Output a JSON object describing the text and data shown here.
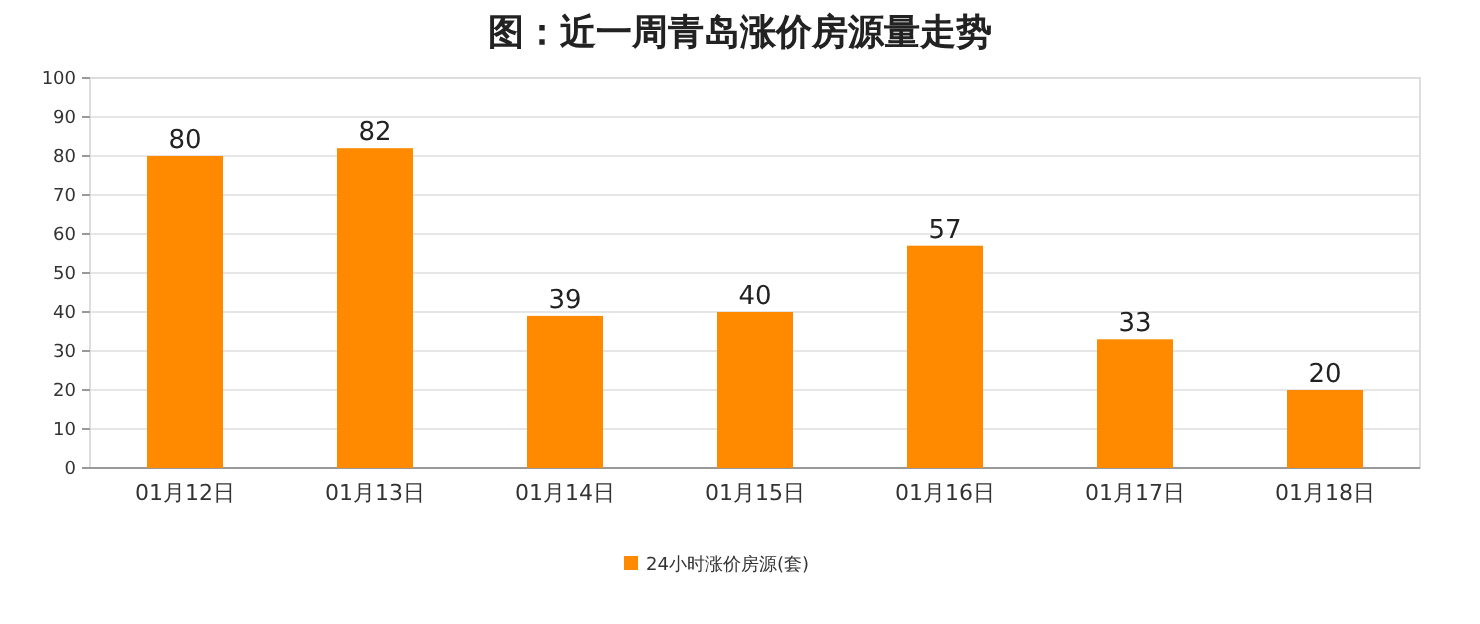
{
  "chart_data": {
    "type": "bar",
    "title": "图：近一周青岛涨价房源量走势",
    "categories": [
      "01月12日",
      "01月13日",
      "01月14日",
      "01月15日",
      "01月16日",
      "01月17日",
      "01月18日"
    ],
    "series": [
      {
        "name": "24小时涨价房源(套)",
        "color": "#ff8a00",
        "values": [
          80,
          82,
          39,
          40,
          57,
          33,
          20
        ]
      }
    ],
    "ylim": [
      0,
      100
    ],
    "yticks": [
      0,
      10,
      20,
      30,
      40,
      50,
      60,
      70,
      80,
      90,
      100
    ],
    "grid": "y",
    "legend": "bottom",
    "data_labels": true
  }
}
